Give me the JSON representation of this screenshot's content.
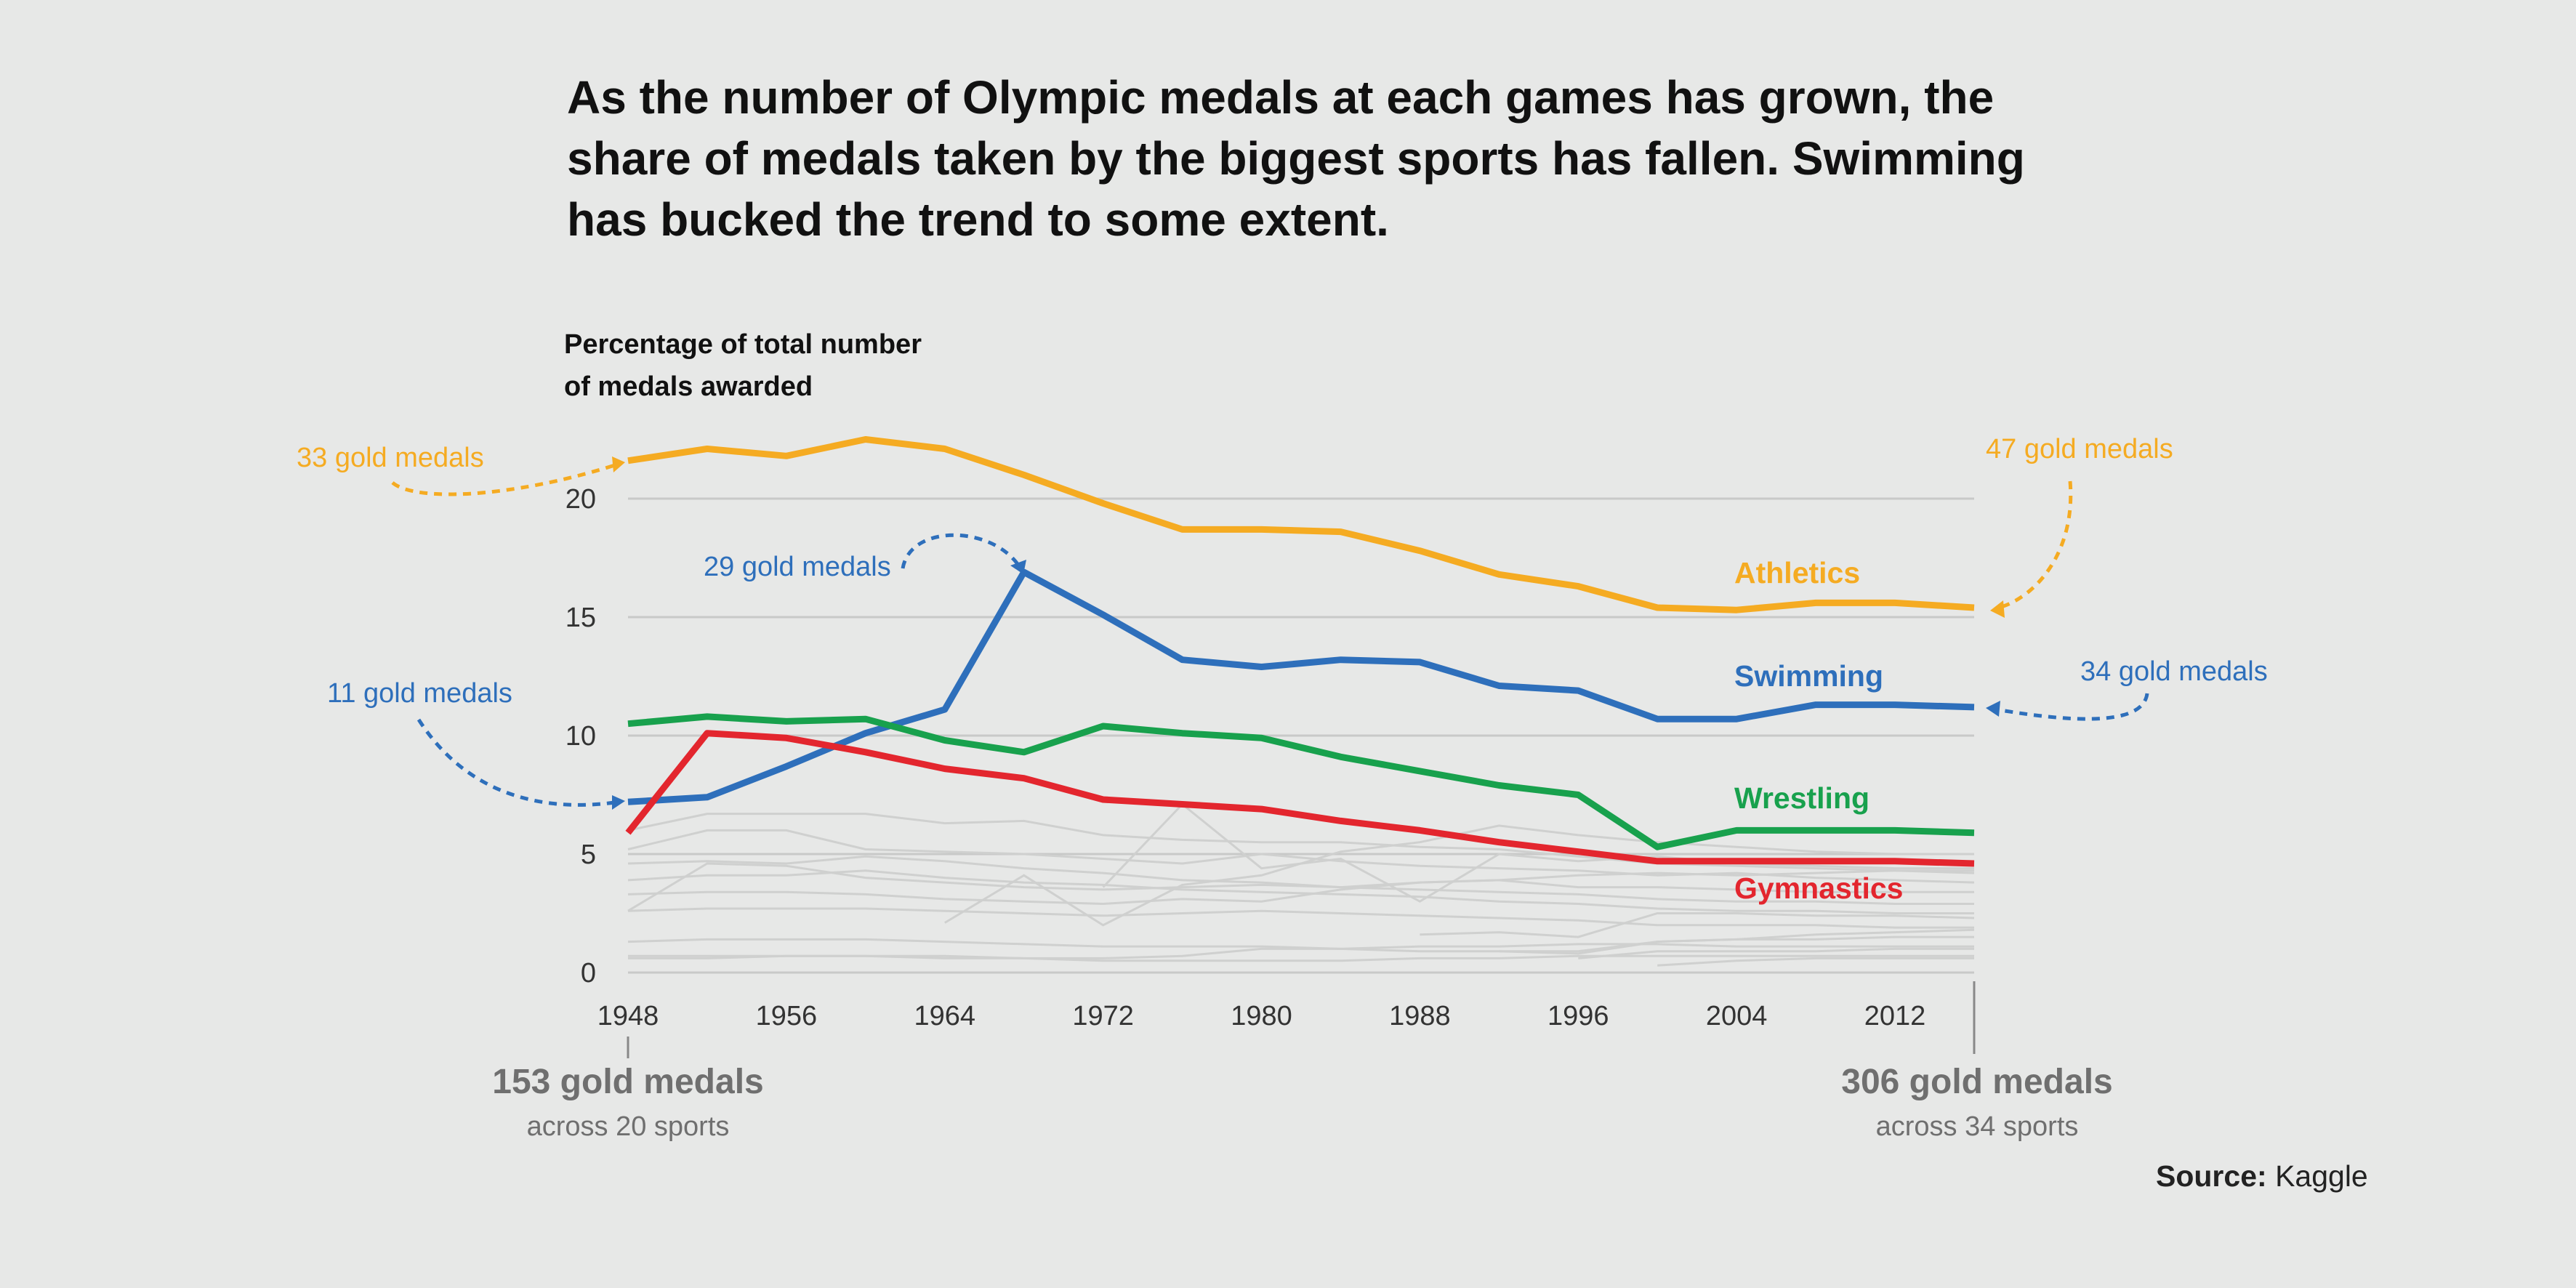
{
  "title": "As the number of Olympic medals at each games has grown, the share of medals taken by the biggest sports has fallen. Swimming has bucked the trend to some extent.",
  "source": {
    "label": "Source:",
    "value": "Kaggle"
  },
  "chart_data": {
    "type": "line",
    "ylabel_lines": [
      "Percentage of total number",
      "of medals awarded"
    ],
    "ylim": [
      0,
      23
    ],
    "xlim": [
      1948,
      2016
    ],
    "yticks": [
      "0",
      "5",
      "10",
      "15",
      "20"
    ],
    "xticks": [
      "1948",
      "1956",
      "1964",
      "1972",
      "1980",
      "1988",
      "1996",
      "2004",
      "2012"
    ],
    "grid": true,
    "x": [
      1948,
      1952,
      1956,
      1960,
      1964,
      1968,
      1972,
      1976,
      1980,
      1984,
      1988,
      1992,
      1996,
      2000,
      2004,
      2008,
      2012,
      2016
    ],
    "series": [
      {
        "name": "Athletics",
        "color": "#f5ab22",
        "values": [
          21.6,
          22.1,
          21.8,
          22.5,
          22.1,
          21.0,
          19.8,
          18.7,
          18.7,
          18.6,
          17.8,
          16.8,
          16.3,
          15.4,
          15.3,
          15.6,
          15.6,
          15.4
        ]
      },
      {
        "name": "Swimming",
        "color": "#2e6fbb",
        "values": [
          7.2,
          7.4,
          8.7,
          10.1,
          11.1,
          16.9,
          15.1,
          13.2,
          12.9,
          13.2,
          13.1,
          12.1,
          11.9,
          10.7,
          10.7,
          11.3,
          11.3,
          11.2
        ]
      },
      {
        "name": "Wrestling",
        "color": "#18a14d",
        "values": [
          10.5,
          10.8,
          10.6,
          10.7,
          9.8,
          9.3,
          10.4,
          10.1,
          9.9,
          9.1,
          8.5,
          7.9,
          7.5,
          5.3,
          6.0,
          6.0,
          6.0,
          5.9
        ]
      },
      {
        "name": "Gymnastics",
        "color": "#e3262e",
        "values": [
          5.9,
          10.1,
          9.9,
          9.3,
          8.6,
          8.2,
          7.3,
          7.1,
          6.9,
          6.4,
          6.0,
          5.5,
          5.1,
          4.7,
          4.7,
          4.7,
          4.7,
          4.6
        ]
      }
    ],
    "background_series": [
      [
        6.0,
        6.7,
        6.7,
        6.7,
        6.3,
        6.4,
        5.8,
        5.6,
        5.5,
        5.5,
        5.3,
        5.2,
        4.9,
        4.6,
        4.5,
        4.4,
        4.3,
        4.2
      ],
      [
        5.2,
        6.0,
        6.0,
        5.2,
        5.1,
        5.0,
        4.8,
        4.6,
        5.0,
        4.7,
        4.5,
        4.4,
        4.3,
        4.1,
        4.2,
        4.0,
        3.9,
        3.8
      ],
      [
        4.6,
        4.7,
        4.6,
        4.9,
        4.7,
        4.4,
        4.2,
        3.9,
        3.8,
        3.6,
        3.5,
        3.4,
        3.3,
        3.1,
        3.0,
        3.0,
        2.9,
        2.9
      ],
      [
        3.9,
        4.1,
        4.1,
        4.3,
        4.0,
        3.8,
        3.7,
        3.5,
        3.4,
        3.3,
        3.2,
        3.0,
        2.9,
        2.7,
        2.6,
        2.6,
        2.5,
        2.5
      ],
      [
        3.3,
        3.4,
        3.4,
        3.3,
        3.1,
        3.0,
        2.9,
        3.1,
        3.0,
        3.5,
        3.8,
        3.9,
        4.1,
        4.2,
        4.1,
        4.2,
        4.3,
        4.3
      ],
      [
        2.6,
        2.7,
        2.7,
        2.7,
        2.6,
        2.5,
        2.4,
        2.5,
        2.6,
        2.5,
        2.4,
        2.3,
        2.2,
        2.0,
        2.0,
        2.0,
        1.9,
        1.9
      ],
      [
        2.6,
        4.6,
        4.5,
        4.0,
        3.8,
        3.6,
        3.5,
        3.6,
        3.7,
        3.6,
        3.8,
        3.9,
        3.6,
        3.6,
        3.5,
        3.4,
        3.4,
        3.4
      ],
      [
        1.3,
        1.4,
        1.4,
        1.4,
        1.3,
        1.2,
        1.1,
        1.1,
        1.1,
        1.0,
        0.9,
        0.9,
        0.9,
        1.3,
        1.4,
        1.4,
        1.5,
        1.5
      ],
      [
        0.7,
        0.7,
        0.7,
        0.7,
        0.7,
        0.6,
        0.6,
        0.7,
        1.0,
        1.0,
        1.1,
        1.1,
        1.2,
        1.2,
        1.1,
        1.1,
        1.1,
        1.1
      ],
      [
        0.6,
        0.6,
        0.7,
        0.7,
        0.6,
        0.6,
        0.5,
        0.5,
        0.5,
        0.5,
        0.6,
        0.6,
        0.7,
        0.7,
        0.7,
        0.7,
        0.7,
        0.7
      ],
      [
        null,
        null,
        null,
        null,
        2.1,
        4.1,
        2.0,
        3.7,
        4.1,
        5.1,
        5.5,
        6.2,
        5.8,
        5.5,
        5.3,
        5.1,
        5.0,
        5.0
      ],
      [
        null,
        null,
        null,
        null,
        null,
        null,
        3.6,
        7.1,
        4.4,
        4.8,
        3.0,
        5.0,
        4.7,
        4.9,
        4.6,
        4.5,
        4.4,
        4.4
      ],
      [
        null,
        null,
        null,
        null,
        null,
        null,
        null,
        null,
        null,
        null,
        1.6,
        1.7,
        1.5,
        2.5,
        2.5,
        2.4,
        2.4,
        2.3
      ],
      [
        null,
        null,
        null,
        null,
        null,
        null,
        null,
        null,
        null,
        null,
        null,
        0.9,
        0.8,
        1.3,
        1.4,
        1.6,
        1.7,
        1.8
      ],
      [
        null,
        null,
        null,
        null,
        null,
        null,
        null,
        null,
        null,
        null,
        null,
        null,
        0.6,
        0.9,
        0.9,
        0.9,
        1.0,
        1.0
      ],
      [
        null,
        null,
        null,
        null,
        null,
        null,
        null,
        null,
        null,
        null,
        null,
        null,
        null,
        0.3,
        0.5,
        0.6,
        0.6,
        0.6
      ]
    ],
    "background_color": "#cfd0cf",
    "annotations": [
      {
        "text": "33 gold medals",
        "color": "#f5ab22"
      },
      {
        "text": "47 gold medals",
        "color": "#f5ab22"
      },
      {
        "text": "29 gold medals",
        "color": "#2e6fbb"
      },
      {
        "text": "11 gold medals",
        "color": "#2e6fbb"
      },
      {
        "text": "34 gold medals",
        "color": "#2e6fbb"
      }
    ],
    "footnotes": {
      "start": {
        "big": "153 gold medals",
        "small": "across 20 sports"
      },
      "end": {
        "big": "306 gold medals",
        "small": "across 34 sports"
      }
    }
  }
}
